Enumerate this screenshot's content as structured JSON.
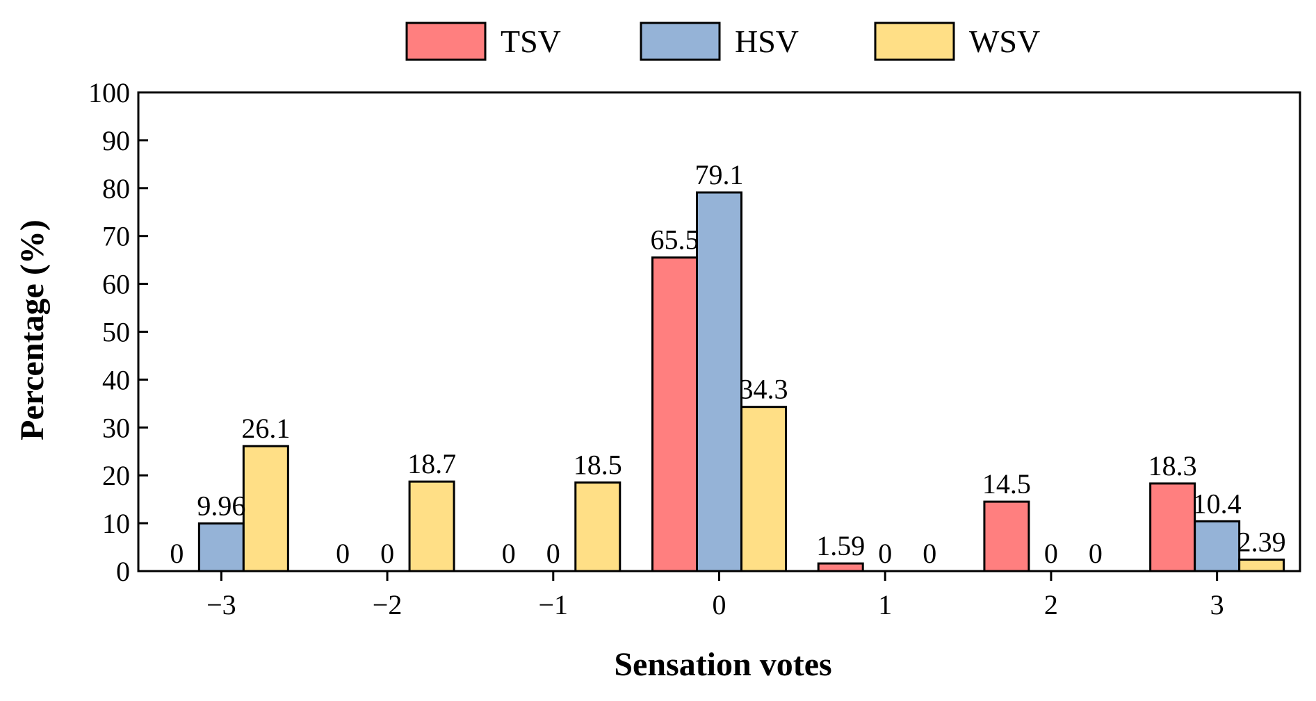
{
  "chart_data": {
    "type": "bar",
    "title": "",
    "xlabel": "Sensation votes",
    "ylabel": "Percentage (%)",
    "ylim": [
      0,
      100
    ],
    "yticks": [
      "0",
      "10",
      "20",
      "30",
      "40",
      "50",
      "60",
      "70",
      "80",
      "90",
      "100"
    ],
    "categories": [
      "−3",
      "−2",
      "−1",
      "0",
      "1",
      "2",
      "3"
    ],
    "legend_position": "top-center",
    "series": [
      {
        "name": "TSV",
        "color": "#FF7F7F",
        "values": [
          0,
          0,
          0,
          65.5,
          1.59,
          14.5,
          18.3
        ],
        "labels": [
          "0",
          "0",
          "0",
          "65.5",
          "1.59",
          "14.5",
          "18.3"
        ]
      },
      {
        "name": "HSV",
        "color": "#95B3D7",
        "values": [
          9.96,
          0,
          0,
          79.1,
          0,
          0,
          10.4
        ],
        "labels": [
          "9.96",
          "0",
          "0",
          "79.1",
          "0",
          "0",
          "10.4"
        ]
      },
      {
        "name": "WSV",
        "color": "#FFDF86",
        "values": [
          26.1,
          18.7,
          18.5,
          34.3,
          0,
          0,
          2.39
        ],
        "labels": [
          "26.1",
          "18.7",
          "18.5",
          "34.3",
          "0",
          "0",
          "2.39"
        ]
      }
    ]
  }
}
